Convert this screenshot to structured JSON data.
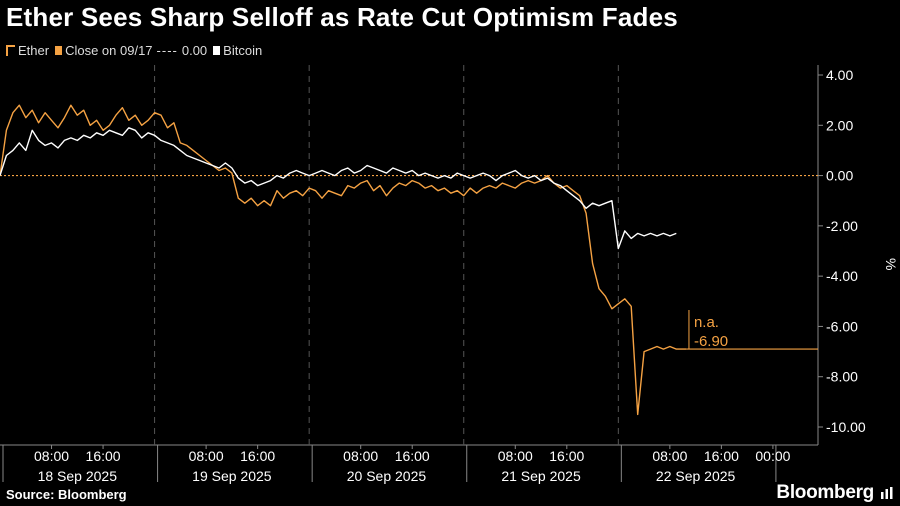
{
  "title": "Ether Sees Sharp Selloff as Rate Cut Optimism Fades",
  "legend": {
    "ether": "Ether",
    "close": "Close on 09/17",
    "close_value": "0.00",
    "bitcoin": "Bitcoin"
  },
  "source": "Source: Bloomberg",
  "brand": "Bloomberg",
  "colors": {
    "ether": "#f5a243",
    "bitcoin": "#ffffff",
    "close": "#f5a243",
    "grid": "#666666"
  },
  "chart_data": {
    "type": "line",
    "title": "Ether Sees Sharp Selloff as Rate Cut Optimism Fades",
    "ylabel": "%",
    "ylim": [
      -10,
      4
    ],
    "yticks": [
      "4.00",
      "2.00",
      "0.00",
      "-2.00",
      "-4.00",
      "-6.00",
      "-8.00",
      "-10.00"
    ],
    "x_unit": "hours since 18 Sep 2025 00:00",
    "xlim": [
      0,
      127
    ],
    "x_tick_labels": [
      {
        "x": 8,
        "label": "08:00"
      },
      {
        "x": 16,
        "label": "16:00"
      },
      {
        "x": 32,
        "label": "08:00"
      },
      {
        "x": 40,
        "label": "16:00"
      },
      {
        "x": 56,
        "label": "08:00"
      },
      {
        "x": 64,
        "label": "16:00"
      },
      {
        "x": 80,
        "label": "08:00"
      },
      {
        "x": 88,
        "label": "16:00"
      },
      {
        "x": 104,
        "label": "08:00"
      },
      {
        "x": 112,
        "label": "16:00"
      },
      {
        "x": 120,
        "label": "00:00"
      }
    ],
    "day_labels": [
      {
        "x": 12,
        "label": "18 Sep 2025"
      },
      {
        "x": 36,
        "label": "19 Sep 2025"
      },
      {
        "x": 60,
        "label": "20 Sep 2025"
      },
      {
        "x": 84,
        "label": "21 Sep 2025"
      },
      {
        "x": 108,
        "label": "22 Sep 2025"
      }
    ],
    "reference_line": {
      "name": "Close on 09/17",
      "value": 0.0
    },
    "annotation": {
      "label1": "n.a.",
      "label2": "-6.90",
      "value": -6.9,
      "x": 106.5
    },
    "series": [
      {
        "name": "Ether",
        "x": [
          0,
          1,
          2,
          3,
          4,
          5,
          6,
          7,
          8,
          9,
          10,
          11,
          12,
          13,
          14,
          15,
          16,
          17,
          18,
          19,
          20,
          21,
          22,
          23,
          24,
          25,
          26,
          27,
          28,
          29,
          30,
          31,
          32,
          33,
          34,
          35,
          36,
          37,
          38,
          39,
          40,
          41,
          42,
          43,
          44,
          45,
          46,
          47,
          48,
          49,
          50,
          51,
          52,
          53,
          54,
          55,
          56,
          57,
          58,
          59,
          60,
          61,
          62,
          63,
          64,
          65,
          66,
          67,
          68,
          69,
          70,
          71,
          72,
          73,
          74,
          75,
          76,
          77,
          78,
          79,
          80,
          81,
          82,
          83,
          84,
          85,
          86,
          87,
          88,
          89,
          90,
          91,
          92,
          93,
          94,
          95,
          96,
          97,
          98,
          99,
          100,
          101,
          102,
          103,
          104,
          105,
          106,
          106.5
        ],
        "values": [
          0.0,
          1.8,
          2.5,
          2.8,
          2.3,
          2.6,
          2.1,
          2.5,
          2.2,
          1.9,
          2.3,
          2.8,
          2.4,
          2.6,
          2.0,
          2.2,
          1.8,
          2.0,
          2.4,
          2.7,
          2.2,
          2.4,
          2.0,
          2.2,
          2.5,
          2.4,
          1.9,
          2.1,
          1.3,
          1.2,
          1.0,
          0.8,
          0.6,
          0.4,
          0.2,
          0.3,
          0.1,
          -0.9,
          -1.1,
          -0.9,
          -1.2,
          -1.0,
          -1.2,
          -0.6,
          -0.9,
          -0.7,
          -0.6,
          -0.8,
          -0.5,
          -0.6,
          -0.9,
          -0.6,
          -0.7,
          -0.8,
          -0.4,
          -0.5,
          -0.3,
          -0.2,
          -0.6,
          -0.4,
          -0.8,
          -0.5,
          -0.3,
          -0.4,
          -0.2,
          -0.3,
          -0.5,
          -0.4,
          -0.6,
          -0.5,
          -0.7,
          -0.6,
          -0.8,
          -0.5,
          -0.7,
          -0.5,
          -0.4,
          -0.5,
          -0.3,
          -0.4,
          -0.5,
          -0.3,
          -0.2,
          -0.3,
          -0.2,
          0.0,
          -0.3,
          -0.5,
          -0.4,
          -0.6,
          -0.8,
          -1.5,
          -3.5,
          -4.5,
          -4.8,
          -5.3,
          -5.1,
          -4.9,
          -5.2,
          -9.5,
          -7.0,
          -6.9,
          -6.8,
          -6.9,
          -6.8,
          -6.9,
          -6.9,
          -6.9
        ],
        "color": "#f5a243"
      },
      {
        "name": "Bitcoin",
        "x": [
          0,
          1,
          2,
          3,
          4,
          5,
          6,
          7,
          8,
          9,
          10,
          11,
          12,
          13,
          14,
          15,
          16,
          17,
          18,
          19,
          20,
          21,
          22,
          23,
          24,
          25,
          26,
          27,
          28,
          29,
          30,
          31,
          32,
          33,
          34,
          35,
          36,
          37,
          38,
          39,
          40,
          41,
          42,
          43,
          44,
          45,
          46,
          47,
          48,
          49,
          50,
          51,
          52,
          53,
          54,
          55,
          56,
          57,
          58,
          59,
          60,
          61,
          62,
          63,
          64,
          65,
          66,
          67,
          68,
          69,
          70,
          71,
          72,
          73,
          74,
          75,
          76,
          77,
          78,
          79,
          80,
          81,
          82,
          83,
          84,
          85,
          86,
          87,
          88,
          89,
          90,
          91,
          92,
          93,
          94,
          95,
          96,
          97,
          98,
          99,
          100,
          101,
          102,
          103,
          104,
          105
        ],
        "values": [
          0.0,
          0.8,
          1.0,
          1.3,
          1.0,
          1.8,
          1.4,
          1.2,
          1.3,
          1.1,
          1.4,
          1.5,
          1.4,
          1.6,
          1.5,
          1.7,
          1.6,
          1.8,
          1.7,
          1.6,
          1.9,
          1.8,
          1.5,
          1.7,
          1.6,
          1.4,
          1.3,
          1.2,
          1.0,
          0.8,
          0.7,
          0.6,
          0.5,
          0.4,
          0.3,
          0.5,
          0.3,
          -0.1,
          -0.3,
          -0.2,
          -0.4,
          -0.3,
          -0.2,
          0.0,
          -0.1,
          0.1,
          0.2,
          0.1,
          0.0,
          0.1,
          0.2,
          0.1,
          0.0,
          0.2,
          0.3,
          0.1,
          0.2,
          0.4,
          0.3,
          0.2,
          0.1,
          0.3,
          0.2,
          0.1,
          0.2,
          0.0,
          0.1,
          0.0,
          -0.1,
          0.0,
          -0.1,
          0.1,
          0.0,
          -0.1,
          0.0,
          0.1,
          0.0,
          -0.2,
          0.0,
          0.1,
          0.2,
          0.0,
          -0.1,
          0.0,
          -0.2,
          -0.1,
          -0.3,
          -0.4,
          -0.6,
          -0.8,
          -1.0,
          -1.3,
          -1.1,
          -1.2,
          -1.1,
          -1.0,
          -2.9,
          -2.2,
          -2.5,
          -2.3,
          -2.4,
          -2.3,
          -2.4,
          -2.3,
          -2.4,
          -2.3
        ],
        "color": "#ffffff"
      }
    ],
    "grid": true,
    "legend_position": "top-left"
  }
}
